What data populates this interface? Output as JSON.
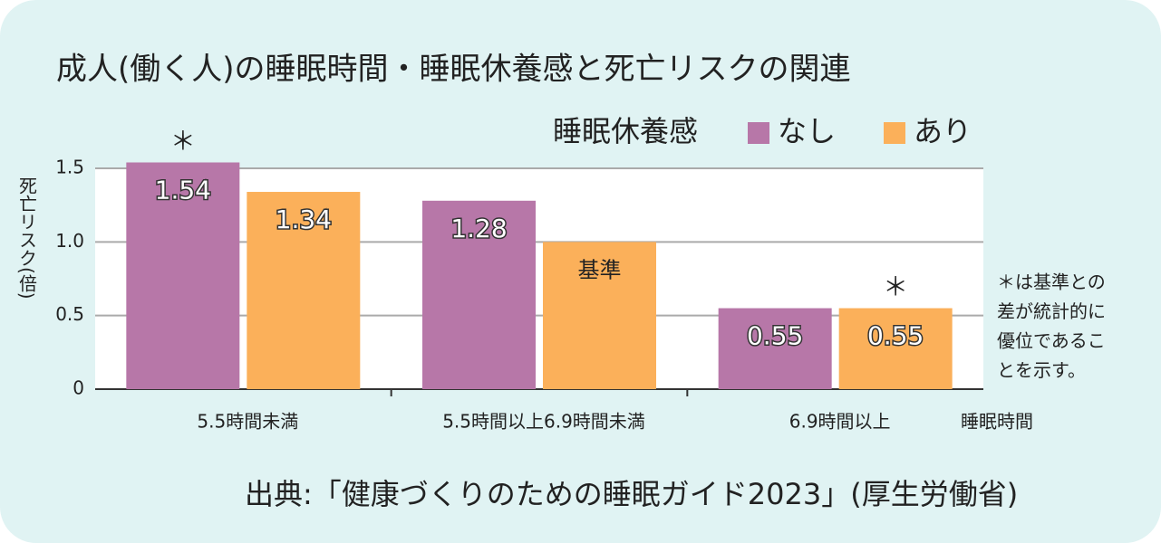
{
  "chart_data": {
    "type": "bar",
    "title": "成人(働く人)の睡眠時間・睡眠休養感と死亡リスクの関連",
    "y_label": "死亡リスク(倍)",
    "x_label": "睡眠時間",
    "legend_title": "睡眠休養感",
    "categories": [
      "5.5時間未満",
      "5.5時間以上6.9時間未満",
      "6.9時間以上"
    ],
    "series": [
      {
        "name": "なし",
        "color": "#b777a8",
        "values": [
          1.54,
          1.28,
          0.55
        ],
        "value_labels": [
          "1.54",
          "1.28",
          "0.55"
        ],
        "significance": [
          "＊",
          null,
          null
        ]
      },
      {
        "name": "あり",
        "color": "#fbb05a",
        "values": [
          1.34,
          1,
          0.55
        ],
        "value_labels": [
          "1.34",
          "基準",
          "0.55"
        ],
        "significance": [
          null,
          null,
          "＊"
        ]
      }
    ],
    "ylim": [
      0,
      1.5
    ],
    "yticks": [
      0,
      0.5,
      {
        "value": 1,
        "label": "1.0"
      },
      1.5
    ],
    "grid": true,
    "note": [
      "＊は基準との",
      "差が統計的に",
      "優位であるこ",
      "とを示す。"
    ],
    "source": "出典:「健康づくりのための睡眠ガイド2023」(厚生労働省)"
  }
}
